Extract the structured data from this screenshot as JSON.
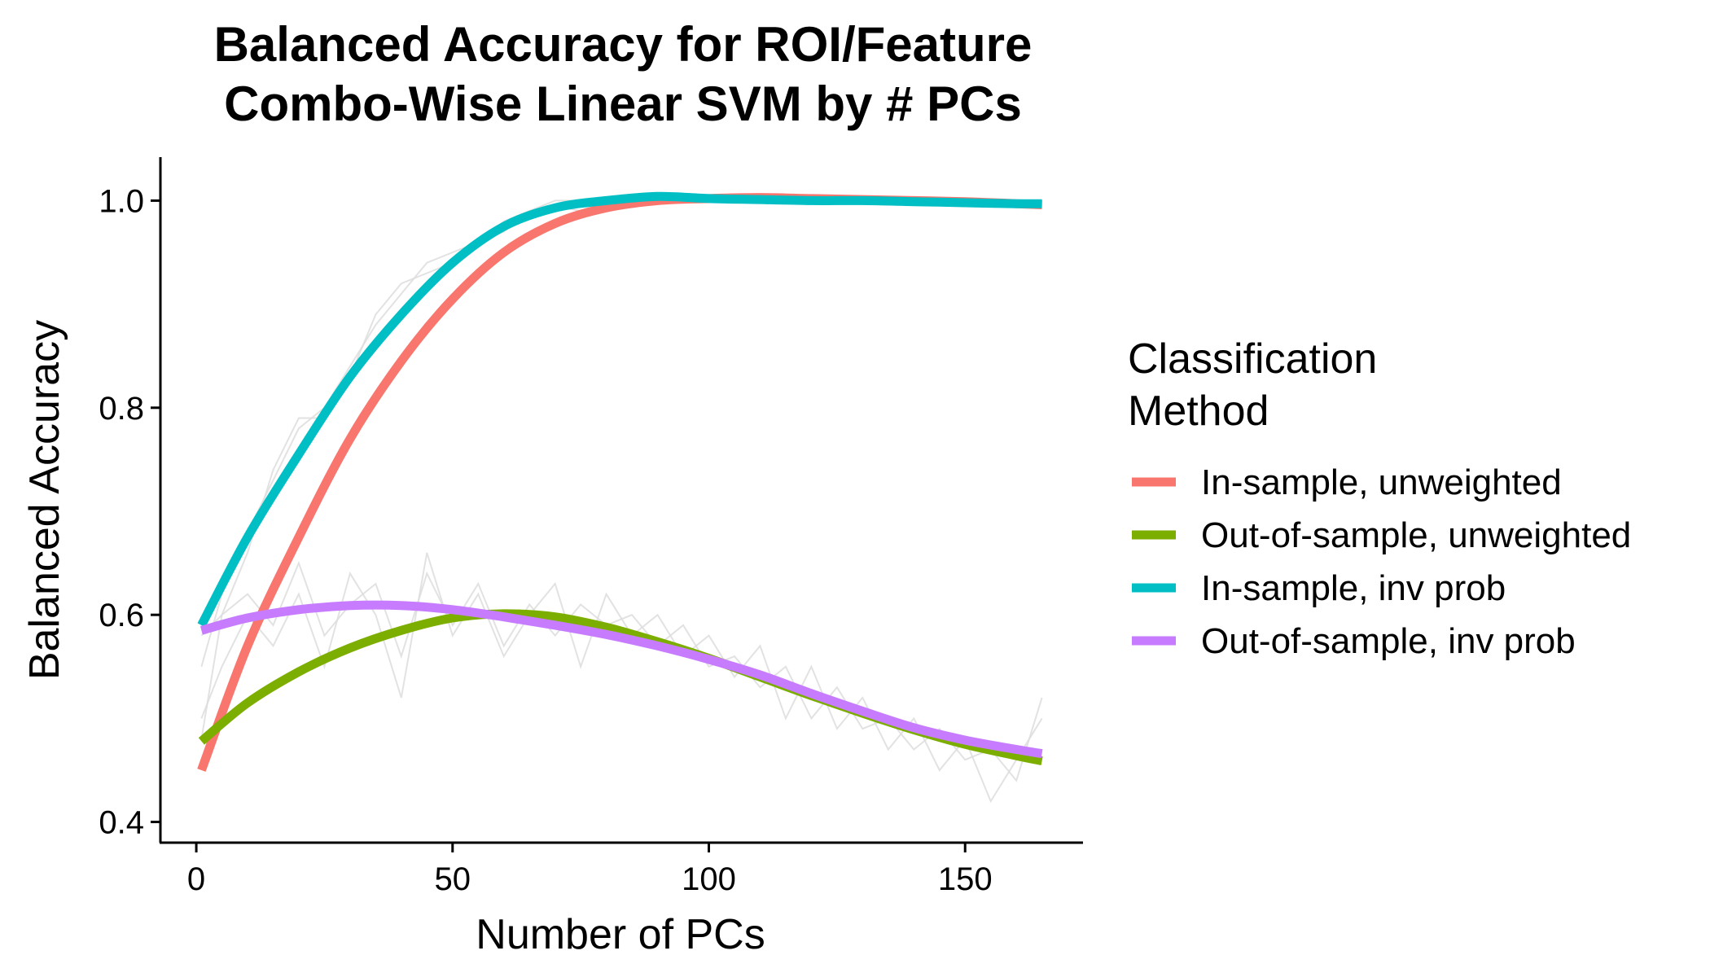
{
  "chart_data": {
    "type": "line",
    "title": [
      "Balanced Accuracy for ROI/Feature",
      "Combo-Wise Linear SVM by # PCs"
    ],
    "xlabel": "Number of PCs",
    "ylabel": "Balanced Accuracy",
    "xlim": [
      -7,
      173
    ],
    "ylim": [
      0.38,
      1.042
    ],
    "x_ticks": [
      0,
      50,
      100,
      150
    ],
    "y_ticks": [
      0.4,
      0.6,
      0.8,
      1.0
    ],
    "x_tick_labels": [
      "0",
      "50",
      "100",
      "150"
    ],
    "y_tick_labels": [
      "0.4",
      "0.6",
      "0.8",
      "1.0"
    ],
    "grid": false,
    "legend": {
      "title": [
        "Classification",
        "Method"
      ],
      "placement": "right"
    },
    "series": [
      {
        "name": "In-sample, unweighted",
        "color": "#F8766D",
        "x": [
          1,
          10,
          20,
          30,
          40,
          50,
          60,
          70,
          80,
          90,
          100,
          110,
          120,
          130,
          140,
          150,
          160,
          165
        ],
        "values": [
          0.45,
          0.57,
          0.675,
          0.77,
          0.845,
          0.905,
          0.95,
          0.978,
          0.993,
          1.0,
          1.002,
          1.003,
          1.002,
          1.001,
          1.0,
          0.999,
          0.997,
          0.996
        ]
      },
      {
        "name": "Out-of-sample, unweighted",
        "color": "#7CAE00",
        "x": [
          1,
          10,
          20,
          30,
          40,
          50,
          60,
          70,
          80,
          90,
          100,
          110,
          120,
          130,
          140,
          150,
          160,
          165
        ],
        "values": [
          0.478,
          0.515,
          0.545,
          0.568,
          0.585,
          0.597,
          0.601,
          0.598,
          0.588,
          0.574,
          0.558,
          0.54,
          0.522,
          0.505,
          0.489,
          0.475,
          0.464,
          0.459
        ]
      },
      {
        "name": "In-sample, inv prob",
        "color": "#00BFC4",
        "x": [
          1,
          10,
          20,
          30,
          40,
          50,
          60,
          70,
          80,
          90,
          100,
          110,
          120,
          130,
          140,
          150,
          160,
          165
        ],
        "values": [
          0.59,
          0.675,
          0.755,
          0.83,
          0.89,
          0.94,
          0.975,
          0.993,
          1.0,
          1.004,
          1.002,
          1.001,
          1.0,
          1.0,
          0.999,
          0.998,
          0.997,
          0.997
        ]
      },
      {
        "name": "Out-of-sample, inv prob",
        "color": "#C77CFF",
        "x": [
          1,
          10,
          20,
          30,
          40,
          50,
          60,
          70,
          80,
          90,
          100,
          110,
          120,
          130,
          140,
          150,
          160,
          165
        ],
        "values": [
          0.585,
          0.597,
          0.605,
          0.609,
          0.609,
          0.605,
          0.598,
          0.59,
          0.581,
          0.57,
          0.557,
          0.542,
          0.524,
          0.507,
          0.491,
          0.479,
          0.47,
          0.466
        ]
      }
    ],
    "raw_series": [
      {
        "x": [
          1,
          5,
          10,
          15,
          20,
          25,
          30,
          35,
          40,
          45,
          50,
          55,
          60,
          65,
          70,
          75,
          80,
          85,
          90,
          95,
          100,
          110,
          120,
          130,
          140,
          150,
          160,
          165
        ],
        "values": [
          0.48,
          0.6,
          0.66,
          0.74,
          0.79,
          0.79,
          0.83,
          0.89,
          0.92,
          0.93,
          0.94,
          0.96,
          0.97,
          0.99,
          0.995,
          0.99,
          1.0,
          1.0,
          1.0,
          1.0,
          1.0,
          1.0,
          1.0,
          1.0,
          1.0,
          1.0,
          1.0,
          0.995
        ]
      },
      {
        "x": [
          1,
          5,
          10,
          15,
          20,
          25,
          30,
          35,
          40,
          45,
          50,
          55,
          60,
          65,
          70,
          75,
          80,
          85,
          90,
          95,
          100,
          110,
          120,
          130,
          140,
          150,
          160,
          165
        ],
        "values": [
          0.55,
          0.62,
          0.68,
          0.73,
          0.78,
          0.8,
          0.84,
          0.88,
          0.91,
          0.94,
          0.95,
          0.96,
          0.98,
          0.99,
          1.0,
          1.0,
          1.0,
          1.0,
          1.0,
          1.0,
          1.0,
          1.0,
          1.0,
          1.0,
          1.0,
          1.0,
          1.0,
          1.0
        ]
      },
      {
        "x": [
          1,
          5,
          10,
          15,
          20,
          25,
          30,
          35,
          40,
          45,
          50,
          55,
          60,
          65,
          70,
          75,
          80,
          85,
          90,
          95,
          100,
          105,
          110,
          115,
          120,
          125,
          130,
          135,
          140,
          145,
          150,
          155,
          160,
          165
        ],
        "values": [
          0.5,
          0.55,
          0.6,
          0.57,
          0.62,
          0.55,
          0.64,
          0.6,
          0.52,
          0.66,
          0.58,
          0.62,
          0.56,
          0.6,
          0.63,
          0.55,
          0.62,
          0.58,
          0.6,
          0.56,
          0.58,
          0.54,
          0.57,
          0.5,
          0.55,
          0.49,
          0.52,
          0.47,
          0.5,
          0.45,
          0.48,
          0.42,
          0.46,
          0.5
        ]
      },
      {
        "x": [
          1,
          5,
          10,
          15,
          20,
          25,
          30,
          35,
          40,
          45,
          50,
          55,
          60,
          65,
          70,
          75,
          80,
          85,
          90,
          95,
          100,
          105,
          110,
          115,
          120,
          125,
          130,
          135,
          140,
          145,
          150,
          155,
          160,
          165
        ],
        "values": [
          0.58,
          0.6,
          0.62,
          0.59,
          0.65,
          0.58,
          0.61,
          0.63,
          0.56,
          0.64,
          0.59,
          0.63,
          0.57,
          0.61,
          0.58,
          0.61,
          0.59,
          0.6,
          0.57,
          0.59,
          0.55,
          0.56,
          0.53,
          0.55,
          0.5,
          0.53,
          0.49,
          0.5,
          0.47,
          0.49,
          0.46,
          0.47,
          0.44,
          0.52
        ]
      }
    ]
  }
}
